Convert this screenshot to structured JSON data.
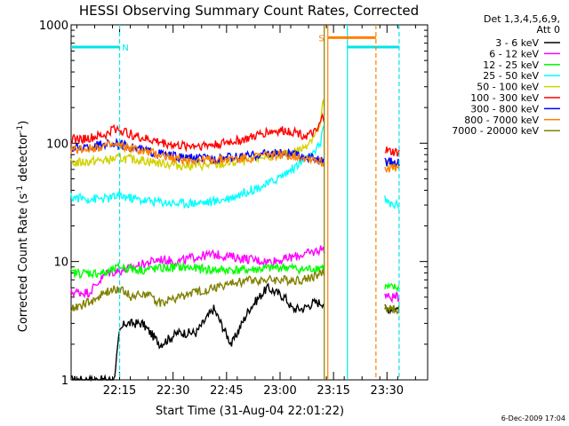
{
  "chart_data": {
    "type": "line",
    "title": "HESSI Observing Summary Count Rates, Corrected",
    "xlabel": "Start Time (31-Aug-04 22:01:22)",
    "ylabel_main": "Corrected Count Rate (s",
    "ylabel_sup1": "-1",
    "ylabel_mid": " detector",
    "ylabel_sup2": "-1",
    "ylabel_end": ")",
    "y_scale": "log",
    "ylim": [
      1,
      1000
    ],
    "xlim_minutes": [
      0,
      100
    ],
    "x_ticks": [
      {
        "label": "22:15",
        "t": 13.6
      },
      {
        "label": "22:30",
        "t": 28.6
      },
      {
        "label": "22:45",
        "t": 43.6
      },
      {
        "label": "23:00",
        "t": 58.6
      },
      {
        "label": "23:15",
        "t": 73.6
      },
      {
        "label": "23:30",
        "t": 88.6
      }
    ],
    "y_ticks": [
      {
        "label": "1",
        "v": 1
      },
      {
        "label": "10",
        "v": 10
      },
      {
        "label": "100",
        "v": 100
      },
      {
        "label": "1000",
        "v": 1000
      }
    ],
    "legend": {
      "position": "right",
      "header_line1": "Det 1,3,4,5,6,9,",
      "header_line2": "Att 0"
    },
    "series": [
      {
        "name": "3 - 6 keV",
        "color": "#000000",
        "gap": [
          71,
          88
        ],
        "points": [
          [
            0,
            1
          ],
          [
            12,
            1
          ],
          [
            13.6,
            2.5
          ],
          [
            15,
            3
          ],
          [
            20,
            3
          ],
          [
            25,
            2
          ],
          [
            30,
            2.5
          ],
          [
            35,
            2.5
          ],
          [
            40,
            4
          ],
          [
            45,
            2
          ],
          [
            50,
            4
          ],
          [
            55,
            6
          ],
          [
            60,
            5
          ],
          [
            62,
            4
          ],
          [
            65,
            4
          ],
          [
            68,
            4.5
          ],
          [
            70.5,
            4.5
          ],
          [
            89,
            4
          ],
          [
            92,
            4
          ]
        ]
      },
      {
        "name": "6 - 12 keV",
        "color": "#ff00ff",
        "gap": [
          71,
          88
        ],
        "points": [
          [
            0,
            5.5
          ],
          [
            5,
            5.5
          ],
          [
            10,
            8
          ],
          [
            15,
            8.5
          ],
          [
            20,
            9.5
          ],
          [
            25,
            10.5
          ],
          [
            30,
            10
          ],
          [
            35,
            11
          ],
          [
            40,
            11.5
          ],
          [
            45,
            11
          ],
          [
            50,
            10.5
          ],
          [
            55,
            10
          ],
          [
            60,
            10.5
          ],
          [
            65,
            11.5
          ],
          [
            68,
            12
          ],
          [
            70.5,
            13
          ],
          [
            89,
            5
          ],
          [
            92,
            5
          ]
        ]
      },
      {
        "name": "12 - 25 keV",
        "color": "#00ff00",
        "gap": [
          71,
          88
        ],
        "points": [
          [
            0,
            8
          ],
          [
            5,
            8
          ],
          [
            10,
            8
          ],
          [
            13.6,
            9
          ],
          [
            20,
            8.5
          ],
          [
            30,
            9
          ],
          [
            40,
            8.5
          ],
          [
            50,
            8.5
          ],
          [
            60,
            9
          ],
          [
            65,
            8.5
          ],
          [
            70.5,
            9
          ],
          [
            89,
            6
          ],
          [
            92,
            6
          ]
        ]
      },
      {
        "name": "25 - 50 keV",
        "color": "#00ffff",
        "gap": [
          71,
          88
        ],
        "points": [
          [
            0,
            35
          ],
          [
            5,
            34
          ],
          [
            10,
            34
          ],
          [
            13.6,
            36
          ],
          [
            20,
            33
          ],
          [
            25,
            32
          ],
          [
            30,
            31
          ],
          [
            40,
            32
          ],
          [
            45,
            35
          ],
          [
            50,
            40
          ],
          [
            55,
            45
          ],
          [
            60,
            55
          ],
          [
            65,
            70
          ],
          [
            68,
            80
          ],
          [
            70,
            100
          ],
          [
            70.5,
            140
          ],
          [
            89,
            31
          ],
          [
            92,
            30
          ]
        ]
      },
      {
        "name": "50 - 100 keV",
        "color": "#d2d200",
        "gap": [
          71,
          88
        ],
        "points": [
          [
            0,
            68
          ],
          [
            5,
            70
          ],
          [
            10,
            72
          ],
          [
            13.6,
            75
          ],
          [
            20,
            72
          ],
          [
            25,
            68
          ],
          [
            30,
            65
          ],
          [
            40,
            65
          ],
          [
            45,
            68
          ],
          [
            50,
            72
          ],
          [
            55,
            78
          ],
          [
            60,
            80
          ],
          [
            65,
            90
          ],
          [
            68,
            115
          ],
          [
            70,
            140
          ],
          [
            70.5,
            220
          ],
          [
            89,
            65
          ],
          [
            92,
            63
          ]
        ]
      },
      {
        "name": "100 - 300 keV",
        "color": "#ff0000",
        "gap": [
          71,
          88
        ],
        "points": [
          [
            0,
            108
          ],
          [
            5,
            110
          ],
          [
            10,
            118
          ],
          [
            12,
            135
          ],
          [
            15,
            125
          ],
          [
            20,
            110
          ],
          [
            30,
            95
          ],
          [
            40,
            97
          ],
          [
            50,
            110
          ],
          [
            55,
            125
          ],
          [
            60,
            128
          ],
          [
            63,
            125
          ],
          [
            66,
            115
          ],
          [
            69,
            125
          ],
          [
            70.5,
            165
          ],
          [
            89,
            85
          ],
          [
            92,
            83
          ]
        ]
      },
      {
        "name": "300 - 800 keV",
        "color": "#0000ff",
        "gap": [
          71,
          88
        ],
        "points": [
          [
            0,
            90
          ],
          [
            5,
            92
          ],
          [
            10,
            100
          ],
          [
            13.6,
            98
          ],
          [
            20,
            88
          ],
          [
            25,
            82
          ],
          [
            30,
            76
          ],
          [
            40,
            74
          ],
          [
            50,
            78
          ],
          [
            55,
            83
          ],
          [
            60,
            82
          ],
          [
            65,
            78
          ],
          [
            68,
            75
          ],
          [
            70.5,
            70
          ],
          [
            89,
            70
          ],
          [
            92,
            68
          ]
        ]
      },
      {
        "name": "800 - 7000 keV",
        "color": "#ff8000",
        "gap": [
          71,
          88
        ],
        "points": [
          [
            0,
            88
          ],
          [
            5,
            90
          ],
          [
            10,
            96
          ],
          [
            13.6,
            95
          ],
          [
            20,
            86
          ],
          [
            25,
            80
          ],
          [
            30,
            73
          ],
          [
            40,
            72
          ],
          [
            50,
            75
          ],
          [
            55,
            80
          ],
          [
            60,
            80
          ],
          [
            65,
            76
          ],
          [
            68,
            74
          ],
          [
            70.5,
            68
          ],
          [
            89,
            62
          ],
          [
            92,
            61
          ]
        ]
      },
      {
        "name": "7000 - 20000 keV",
        "color": "#808000",
        "gap": [
          71,
          88
        ],
        "points": [
          [
            0,
            4
          ],
          [
            5,
            4.5
          ],
          [
            10,
            5.5
          ],
          [
            13.6,
            6
          ],
          [
            17,
            5
          ],
          [
            20,
            5.5
          ],
          [
            25,
            4.5
          ],
          [
            30,
            5
          ],
          [
            35,
            5.5
          ],
          [
            40,
            6
          ],
          [
            45,
            6.5
          ],
          [
            50,
            7
          ],
          [
            55,
            7
          ],
          [
            60,
            7
          ],
          [
            65,
            7
          ],
          [
            68,
            7.5
          ],
          [
            70.5,
            8
          ],
          [
            89,
            4
          ],
          [
            92,
            4
          ]
        ]
      }
    ],
    "flags": [
      {
        "label": "N",
        "color": "#00e6e6",
        "bar": [
          0,
          13.6
        ],
        "level": 650,
        "line_t": 13.6,
        "dashed": true
      },
      {
        "label": "",
        "color": "#00e6e6",
        "bar": [
          77.5,
          92
        ],
        "level": 650,
        "line_t": 77.5,
        "dashed": false
      },
      {
        "label": "",
        "color": "#00e6e6",
        "bar": null,
        "level": 650,
        "line_t": 92,
        "dashed": true
      },
      {
        "label": "S",
        "color": "#ff8000",
        "bar": [
          72,
          85.5
        ],
        "level": 780,
        "line_t": 85.5,
        "dashed": true
      },
      {
        "label": "",
        "color": "#ff8000",
        "bar": null,
        "level": 780,
        "line_t": 72,
        "dashed": false
      },
      {
        "label": "",
        "color": "#808000",
        "bar": null,
        "level": 780,
        "line_t": 71,
        "dashed": false
      }
    ],
    "footer_date": "6-Dec-2009 17:04"
  }
}
